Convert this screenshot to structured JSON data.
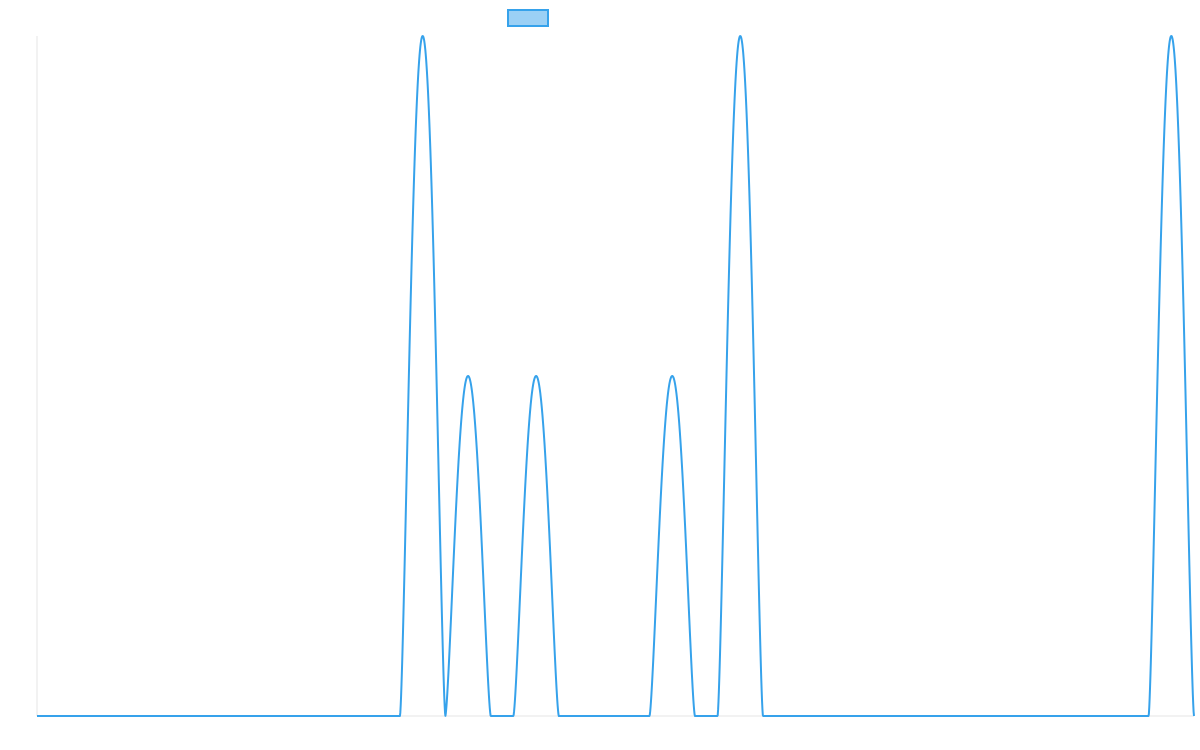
{
  "chart_data": {
    "type": "line",
    "legend": {
      "placement": "top-center",
      "entries": [
        {
          "name": "",
          "fill": "#9bd0f5",
          "stroke": "#36a2eb"
        }
      ]
    },
    "x_range": [
      0,
      51
    ],
    "ylim": [
      0,
      1
    ],
    "grid": false,
    "series": [
      {
        "name": "",
        "color": "#36a2eb",
        "peaks": [
          {
            "center": 17,
            "height": 1.0
          },
          {
            "center": 19,
            "height": 0.5
          },
          {
            "center": 22,
            "height": 0.5
          },
          {
            "center": 28,
            "height": 0.5
          },
          {
            "center": 31,
            "height": 1.0
          },
          {
            "center": 50,
            "height": 1.0
          }
        ],
        "peak_half_width": 1
      }
    ]
  }
}
